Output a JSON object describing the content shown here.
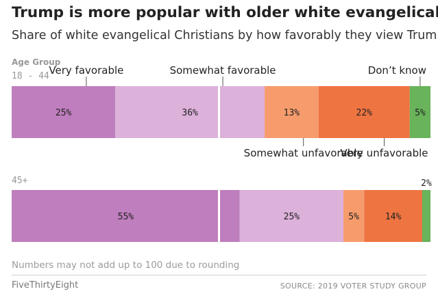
{
  "header": {
    "title": "Trump is more popular with older white evangelicals",
    "subtitle": "Share of white evangelical Christians by how favorably they view Trump"
  },
  "chart_data": {
    "type": "bar",
    "orientation": "horizontal-stacked",
    "group_axis_label": "Age Group",
    "categories": [
      "18 - 44",
      "45+"
    ],
    "series": [
      {
        "name": "Very favorable",
        "values": [
          25,
          55
        ],
        "labels": [
          "25%",
          "55%"
        ],
        "color": "#bf7ebd"
      },
      {
        "name": "Somewhat favorable",
        "values": [
          36,
          25
        ],
        "labels": [
          "36%",
          "25%"
        ],
        "color": "#dcb1da"
      },
      {
        "name": "Somewhat unfavorable",
        "values": [
          13,
          5
        ],
        "labels": [
          "13%",
          "5%"
        ],
        "color": "#f69c6c"
      },
      {
        "name": "Very unfavorable",
        "values": [
          22,
          14
        ],
        "labels": [
          "22%",
          "14%"
        ],
        "color": "#ee7442"
      },
      {
        "name": "Don’t know",
        "values": [
          5,
          2
        ],
        "labels": [
          "5%",
          "2%"
        ],
        "color": "#69b35a"
      }
    ],
    "midpoint": 50,
    "xlim": [
      0,
      100
    ]
  },
  "footer": {
    "note": "Numbers may not add up to 100 due to rounding",
    "brand": "FiveThirtyEight",
    "source": "SOURCE: 2019 VOTER STUDY GROUP"
  }
}
